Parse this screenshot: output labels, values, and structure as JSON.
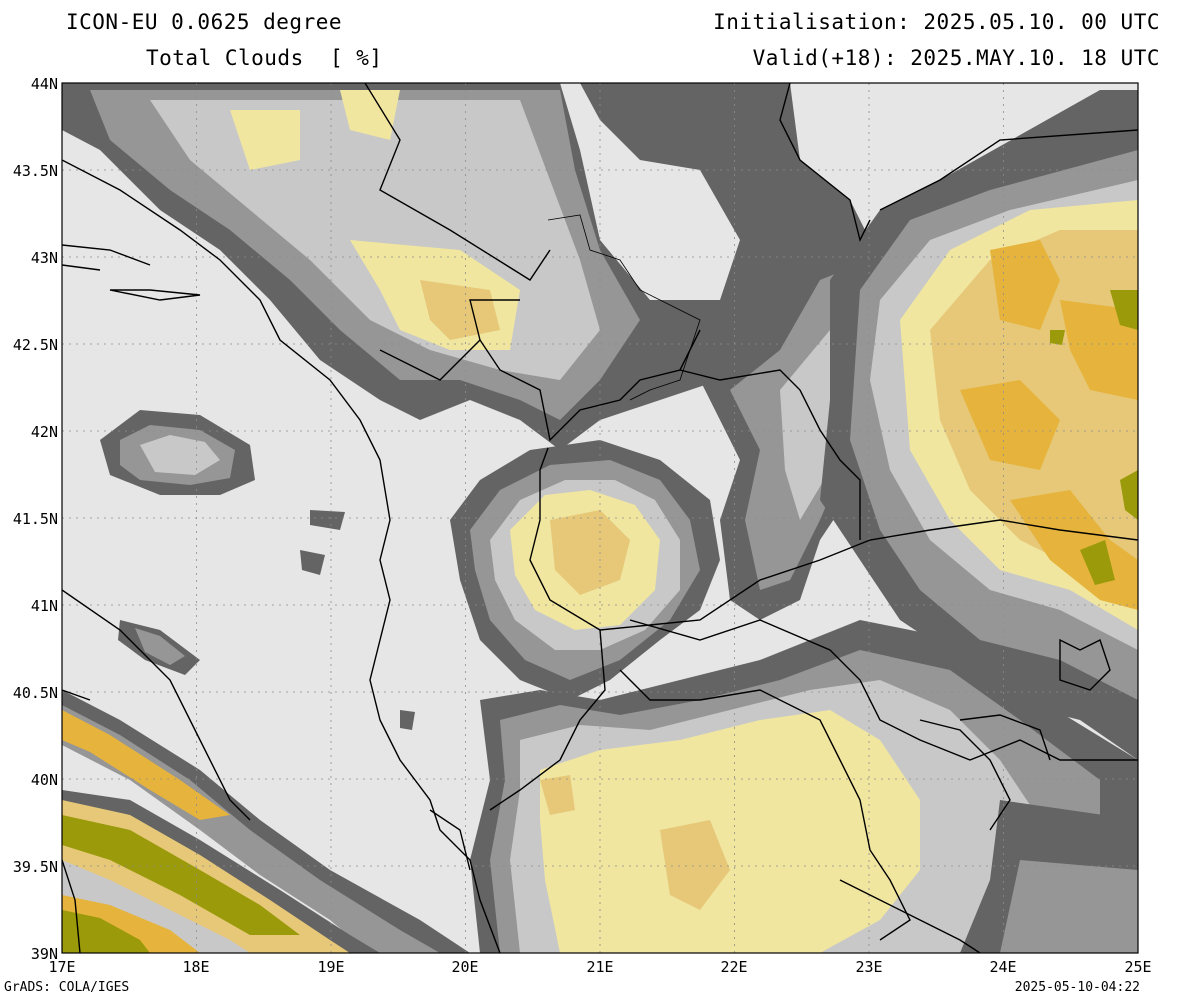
{
  "header": {
    "model": "ICON-EU 0.0625 degree",
    "field": "Total Clouds  [ %]",
    "init": "Initialisation: 2025.05.10. 00 UTC",
    "valid": "Valid(+18): 2025.MAY.10. 18 UTC"
  },
  "axes": {
    "lat_labels": [
      "44N",
      "43.5N",
      "43N",
      "42.5N",
      "42N",
      "41.5N",
      "41N",
      "40.5N",
      "40N",
      "39.5N",
      "39N"
    ],
    "lon_labels": [
      "17E",
      "18E",
      "19E",
      "20E",
      "21E",
      "22E",
      "23E",
      "24E",
      "25E"
    ]
  },
  "footer": {
    "left": "GrADS: COLA/IGES",
    "right": "2025-05-10-04:22"
  },
  "colors": {
    "clear": "#e6e6e6",
    "dark_gray": "#646464",
    "mid_gray": "#969696",
    "light_gray": "#c8c8c8",
    "pale_yellow": "#f0e6a0",
    "tan": "#e6c878",
    "orange": "#e6b43c",
    "olive": "#9a9a0a"
  }
}
